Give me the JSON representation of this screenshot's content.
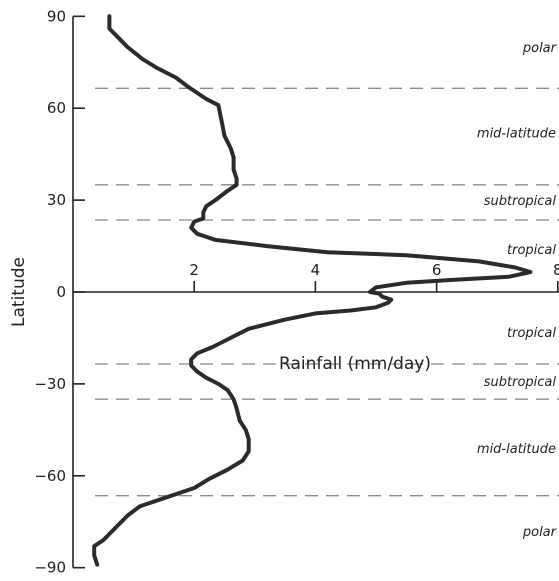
{
  "chart_data": {
    "type": "line",
    "xlabel": "Rainfall (mm/day)",
    "ylabel": "Latitude",
    "xlim": [
      0,
      8
    ],
    "ylim": [
      -90,
      90
    ],
    "x_ticks": [
      2,
      4,
      6,
      8
    ],
    "x_tick_labels": [
      "2",
      "4",
      "6",
      "8"
    ],
    "y_ticks": [
      90,
      60,
      30,
      0,
      -30,
      -60,
      -90
    ],
    "y_tick_labels": [
      "90",
      "60",
      "30",
      "0",
      "−30",
      "−60",
      "−90"
    ],
    "zone_boundaries": [
      66.5,
      35,
      23.5,
      -23.5,
      -35,
      -66.5
    ],
    "zone_labels": [
      {
        "text": "polar",
        "lat": 80
      },
      {
        "text": "mid-latitude",
        "lat": 52
      },
      {
        "text": "subtropical",
        "lat": 30
      },
      {
        "text": "tropical",
        "lat": 14
      },
      {
        "text": "tropical",
        "lat": -13
      },
      {
        "text": "subtropical",
        "lat": -29
      },
      {
        "text": "mid-latitude",
        "lat": -51
      },
      {
        "text": "polar",
        "lat": -78
      }
    ],
    "series": [
      {
        "points": [
          [
            0.6,
            90
          ],
          [
            0.6,
            86
          ],
          [
            0.75,
            83
          ],
          [
            0.9,
            80
          ],
          [
            1.15,
            76
          ],
          [
            1.4,
            73
          ],
          [
            1.7,
            70
          ],
          [
            1.9,
            67
          ],
          [
            2.05,
            65
          ],
          [
            2.2,
            63
          ],
          [
            2.4,
            61
          ],
          [
            2.45,
            56
          ],
          [
            2.5,
            51
          ],
          [
            2.6,
            47
          ],
          [
            2.65,
            44
          ],
          [
            2.65,
            40
          ],
          [
            2.7,
            37
          ],
          [
            2.7,
            35
          ],
          [
            2.55,
            33
          ],
          [
            2.35,
            30
          ],
          [
            2.2,
            28
          ],
          [
            2.15,
            26
          ],
          [
            2.15,
            24
          ],
          [
            2.0,
            23
          ],
          [
            1.95,
            21
          ],
          [
            2.05,
            19
          ],
          [
            2.35,
            17
          ],
          [
            3.2,
            15
          ],
          [
            4.2,
            13
          ],
          [
            5.5,
            12
          ],
          [
            6.7,
            10
          ],
          [
            7.3,
            8
          ],
          [
            7.55,
            6.5
          ],
          [
            7.2,
            5
          ],
          [
            6.3,
            4
          ],
          [
            5.5,
            3
          ],
          [
            5.0,
            1.5
          ],
          [
            4.9,
            0
          ],
          [
            5.05,
            -0.5
          ],
          [
            5.1,
            -1.5
          ],
          [
            5.25,
            -2.5
          ],
          [
            5.2,
            -3.5
          ],
          [
            5.0,
            -5
          ],
          [
            4.6,
            -6
          ],
          [
            4.0,
            -7
          ],
          [
            3.5,
            -9
          ],
          [
            2.9,
            -12
          ],
          [
            2.6,
            -15
          ],
          [
            2.3,
            -18
          ],
          [
            2.05,
            -20
          ],
          [
            1.95,
            -22
          ],
          [
            1.95,
            -24
          ],
          [
            2.05,
            -26
          ],
          [
            2.2,
            -28
          ],
          [
            2.4,
            -30
          ],
          [
            2.55,
            -32
          ],
          [
            2.65,
            -35
          ],
          [
            2.7,
            -38
          ],
          [
            2.75,
            -42
          ],
          [
            2.85,
            -45
          ],
          [
            2.9,
            -48
          ],
          [
            2.9,
            -52
          ],
          [
            2.8,
            -55
          ],
          [
            2.55,
            -58
          ],
          [
            2.25,
            -61
          ],
          [
            2.0,
            -64
          ],
          [
            1.55,
            -67
          ],
          [
            1.1,
            -70
          ],
          [
            0.9,
            -73
          ],
          [
            0.65,
            -78
          ],
          [
            0.5,
            -81
          ],
          [
            0.35,
            -83
          ],
          [
            0.35,
            -86
          ],
          [
            0.4,
            -89
          ]
        ]
      }
    ]
  }
}
